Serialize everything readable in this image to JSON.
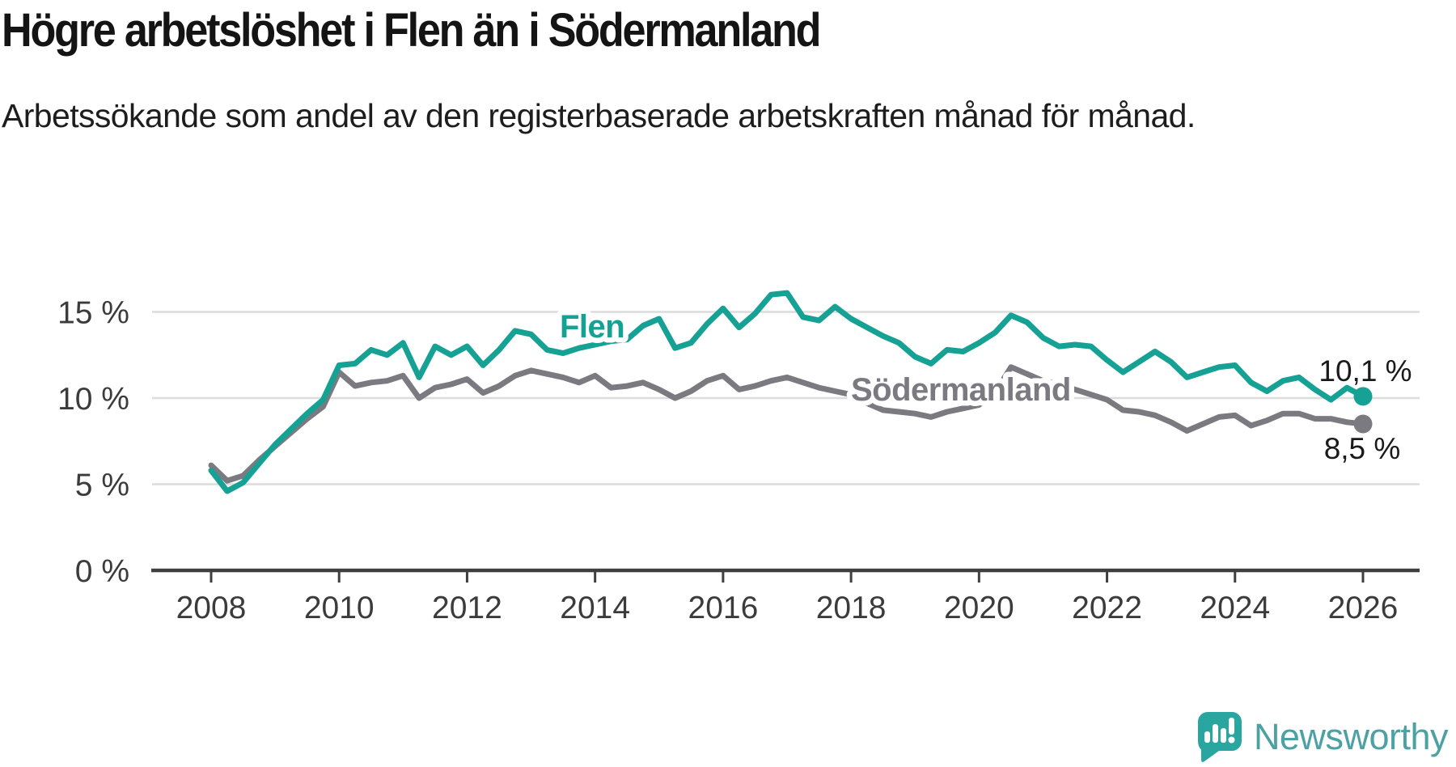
{
  "title": "Högre arbetslöshet i Flen än i Södermanland",
  "subtitle": "Arbetssökande som andel av den registerbaserade arbetskraften månad för månad.",
  "branding": {
    "name": "Newsworthy"
  },
  "colors": {
    "flen": "#16a195",
    "sodermanland": "#7b7a80",
    "axis": "#3f3f3f",
    "grid": "#dcdcdc",
    "tick_label": "#3b3b3b",
    "value_label": "#1a1a1a",
    "logo_text": "#4ba1a3",
    "logo_icon": "#2aa6a1",
    "background": "#ffffff"
  },
  "chart_data": {
    "type": "line",
    "title": "Högre arbetslöshet i Flen än i Södermanland",
    "subtitle": "Arbetssökande som andel av den registerbaserade arbetskraften månad för månad.",
    "unit": "%",
    "grid": "horizontal",
    "legend_position": "inline-labels",
    "x_start": 2008.0,
    "x_step": 0.25,
    "x_end": 2026.0,
    "xlim": [
      2007.1,
      2026.9
    ],
    "ylim": [
      0,
      16.6
    ],
    "x_ticks": [
      2008,
      2010,
      2012,
      2014,
      2016,
      2018,
      2020,
      2022,
      2024,
      2026
    ],
    "y_ticks": [
      {
        "value": 15,
        "label": "15 %"
      },
      {
        "value": 10,
        "label": "10 %"
      },
      {
        "value": 5,
        "label": "5 %"
      },
      {
        "value": 0,
        "label": "0 %"
      }
    ],
    "series": [
      {
        "name": "Flen",
        "color": "#16a195",
        "end_value": 10.1,
        "end_label": "10,1 %",
        "values": [
          5.8,
          4.6,
          5.1,
          6.2,
          7.3,
          8.2,
          9.1,
          9.9,
          11.9,
          12.0,
          12.8,
          12.5,
          13.2,
          11.2,
          13.0,
          12.5,
          13.0,
          11.9,
          12.8,
          13.9,
          13.7,
          12.8,
          12.6,
          12.9,
          13.1,
          13.3,
          13.4,
          14.2,
          14.6,
          12.9,
          13.2,
          14.3,
          15.2,
          14.1,
          14.9,
          16.0,
          16.1,
          14.7,
          14.5,
          15.3,
          14.6,
          14.1,
          13.6,
          13.2,
          12.4,
          12.0,
          12.8,
          12.7,
          13.2,
          13.8,
          14.8,
          14.4,
          13.5,
          13.0,
          13.1,
          13.0,
          12.2,
          11.5,
          12.1,
          12.7,
          12.1,
          11.2,
          11.5,
          11.8,
          11.9,
          10.9,
          10.4,
          11.0,
          11.2,
          10.5,
          9.9,
          10.6,
          10.1
        ]
      },
      {
        "name": "Södermanland",
        "color": "#7b7a80",
        "end_value": 8.5,
        "end_label": "8,5 %",
        "values": [
          6.1,
          5.2,
          5.5,
          6.4,
          7.2,
          8.0,
          8.8,
          9.5,
          11.5,
          10.7,
          10.9,
          11.0,
          11.3,
          10.0,
          10.6,
          10.8,
          11.1,
          10.3,
          10.7,
          11.3,
          11.6,
          11.4,
          11.2,
          10.9,
          11.3,
          10.6,
          10.7,
          10.9,
          10.5,
          10.0,
          10.4,
          11.0,
          11.3,
          10.5,
          10.7,
          11.0,
          11.2,
          10.9,
          10.6,
          10.4,
          10.2,
          9.7,
          9.3,
          9.2,
          9.1,
          8.9,
          9.2,
          9.4,
          9.6,
          10.3,
          11.8,
          11.4,
          11.0,
          10.8,
          10.5,
          10.2,
          9.9,
          9.3,
          9.2,
          9.0,
          8.6,
          8.1,
          8.5,
          8.9,
          9.0,
          8.4,
          8.7,
          9.1,
          9.1,
          8.8,
          8.8,
          8.6,
          8.5
        ]
      }
    ]
  }
}
